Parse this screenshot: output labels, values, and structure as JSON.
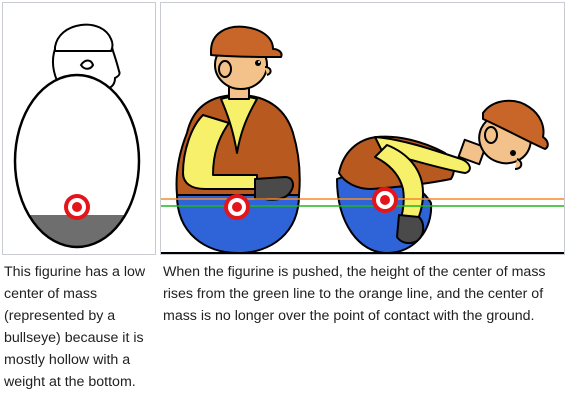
{
  "captions": {
    "left": "This figurine has a low center of mass (represented by a bullseye) because it is mostly hollow with a weight at the bottom.",
    "right": "When the figurine is pushed, the height of the center of mass rises from the green line to the orange line, and the center of mass is no longer over the point of contact with the ground."
  },
  "colors": {
    "outline": "#000000",
    "hat": "#c8662a",
    "skin": "#f2c28a",
    "shirt": "#f7f06a",
    "vest": "#b85a1f",
    "pants": "#2f63d8",
    "glove": "#4a4a4a",
    "bullseye": "#e4141b",
    "weight": "#6e6e6e",
    "green_line": "#22b51f",
    "orange_line": "#f28c28"
  }
}
